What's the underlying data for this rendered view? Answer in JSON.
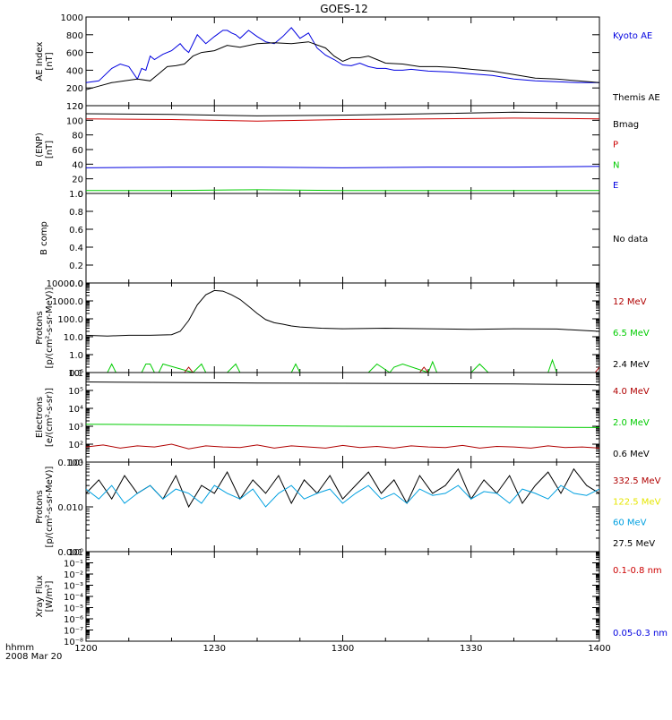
{
  "title": "GOES-12",
  "time_axis": {
    "ticks": [
      "1200",
      "1230",
      "1300",
      "1330",
      "1400"
    ],
    "label_line1": "hhmm",
    "label_line2": "2008 Mar 20",
    "range_minutes": [
      0,
      120
    ]
  },
  "colors": {
    "black": "#000000",
    "blue": "#0000e0",
    "red": "#cc0000",
    "green": "#00cc00",
    "cyan": "#00a0e0",
    "yellow": "#e6e600",
    "darkred": "#b00000"
  },
  "chart_data": [
    {
      "type": "line",
      "ylabel": [
        "AE Index",
        "[nT]"
      ],
      "ylim": [
        0,
        1000
      ],
      "yticks": [
        "0",
        "200",
        "400",
        "600",
        "800",
        "1000"
      ],
      "legend": [
        {
          "label": "Kyoto AE",
          "color": "#0000e0"
        },
        {
          "label": "Themis AE",
          "color": "#000000"
        }
      ],
      "series": [
        {
          "name": "Kyoto AE",
          "color": "#0000e0",
          "x": [
            0,
            3,
            6,
            8,
            10,
            12,
            13,
            14,
            15,
            16,
            18,
            20,
            22,
            23,
            24,
            26,
            28,
            30,
            32,
            33,
            34,
            35,
            36,
            38,
            40,
            42,
            44,
            46,
            48,
            50,
            52,
            54,
            56,
            58,
            60,
            62,
            64,
            66,
            68,
            70,
            72,
            74,
            76,
            78,
            80,
            85,
            90,
            95,
            100,
            105,
            110,
            115,
            120
          ],
          "y": [
            260,
            280,
            420,
            470,
            440,
            300,
            420,
            400,
            560,
            520,
            580,
            620,
            700,
            640,
            600,
            800,
            700,
            780,
            850,
            850,
            820,
            800,
            760,
            850,
            780,
            720,
            700,
            780,
            880,
            760,
            820,
            650,
            570,
            520,
            460,
            450,
            480,
            440,
            420,
            420,
            400,
            400,
            410,
            400,
            390,
            380,
            360,
            340,
            300,
            280,
            270,
            260,
            260
          ]
        },
        {
          "name": "Themis AE",
          "color": "#000000",
          "x": [
            0,
            3,
            6,
            9,
            12,
            15,
            17,
            19,
            21,
            23,
            25,
            27,
            30,
            33,
            36,
            40,
            44,
            48,
            52,
            56,
            58,
            60,
            62,
            64,
            66,
            68,
            70,
            74,
            78,
            82,
            86,
            90,
            95,
            100,
            105,
            110,
            115,
            120
          ],
          "y": [
            180,
            220,
            260,
            280,
            300,
            280,
            360,
            440,
            450,
            470,
            560,
            600,
            620,
            680,
            660,
            700,
            710,
            700,
            720,
            650,
            560,
            500,
            540,
            540,
            560,
            520,
            480,
            470,
            440,
            440,
            430,
            410,
            390,
            350,
            310,
            300,
            280,
            260
          ]
        }
      ]
    },
    {
      "type": "line",
      "ylabel": [
        "B (ENP)",
        "[nT]"
      ],
      "ylim": [
        0,
        120
      ],
      "yticks": [
        "0",
        "20",
        "40",
        "60",
        "80",
        "100",
        "120"
      ],
      "legend": [
        {
          "label": "Bmag",
          "color": "#000000"
        },
        {
          "label": "P",
          "color": "#cc0000"
        },
        {
          "label": "N",
          "color": "#00cc00"
        },
        {
          "label": "E",
          "color": "#0000e0"
        }
      ],
      "series": [
        {
          "name": "Bmag",
          "color": "#000000",
          "x": [
            0,
            20,
            40,
            60,
            80,
            100,
            120
          ],
          "y": [
            109,
            108,
            106,
            107,
            109,
            111,
            110
          ]
        },
        {
          "name": "P",
          "color": "#cc0000",
          "x": [
            0,
            20,
            40,
            60,
            80,
            100,
            120
          ],
          "y": [
            102,
            101,
            99,
            101,
            102,
            103,
            102
          ]
        },
        {
          "name": "N",
          "color": "#00cc00",
          "x": [
            0,
            20,
            40,
            60,
            80,
            100,
            120
          ],
          "y": [
            4,
            4,
            5,
            4,
            4,
            4,
            4
          ]
        },
        {
          "name": "E",
          "color": "#0000e0",
          "x": [
            0,
            20,
            40,
            60,
            80,
            100,
            120
          ],
          "y": [
            35,
            36,
            36,
            35,
            36,
            36,
            37
          ]
        }
      ]
    },
    {
      "type": "line",
      "ylabel": [
        "B comp"
      ],
      "ylim": [
        0,
        1
      ],
      "yticks": [
        "0.0",
        "0.2",
        "0.4",
        "0.6",
        "0.8",
        "1.0"
      ],
      "legend": [
        {
          "label": "No data",
          "color": "#000000"
        }
      ],
      "series": []
    },
    {
      "type": "line",
      "scale": "log",
      "ylabel": [
        "Protons",
        "[p/(cm²-s-sr-MeV)]"
      ],
      "ylim": [
        0.1,
        10000
      ],
      "yticks": [
        "0.1",
        "1.0",
        "10.0",
        "100.0",
        "1000.0",
        "10000.0"
      ],
      "legend": [
        {
          "label": "12 MeV",
          "color": "#b00000"
        },
        {
          "label": "6.5 MeV",
          "color": "#00cc00"
        },
        {
          "label": "2.4 MeV",
          "color": "#000000"
        }
      ],
      "series": [
        {
          "name": "2.4 MeV",
          "color": "#000000",
          "x": [
            0,
            5,
            10,
            15,
            20,
            22,
            24,
            26,
            28,
            30,
            32,
            34,
            36,
            38,
            40,
            42,
            44,
            46,
            48,
            50,
            55,
            60,
            70,
            80,
            90,
            100,
            110,
            120
          ],
          "y": [
            12,
            11,
            12,
            12,
            13,
            20,
            80,
            600,
            2200,
            3800,
            3500,
            2200,
            1200,
            500,
            200,
            90,
            60,
            50,
            40,
            35,
            30,
            28,
            30,
            28,
            26,
            28,
            27,
            20
          ]
        },
        {
          "name": "6.5 MeV",
          "color": "#00cc00",
          "x": [
            5,
            6,
            7,
            13,
            14,
            15,
            16,
            17,
            18,
            25,
            27,
            28,
            33,
            35,
            36,
            48,
            49,
            50,
            66,
            68,
            71,
            72,
            74,
            80,
            81,
            82,
            90,
            92,
            94,
            108,
            109,
            110
          ],
          "y": [
            0.1,
            0.3,
            0.1,
            0.1,
            0.3,
            0.3,
            0.1,
            0.1,
            0.3,
            0.1,
            0.3,
            0.1,
            0.1,
            0.3,
            0.1,
            0.1,
            0.3,
            0.1,
            0.1,
            0.3,
            0.1,
            0.2,
            0.3,
            0.1,
            0.4,
            0.1,
            0.1,
            0.3,
            0.1,
            0.1,
            0.5,
            0.1
          ]
        },
        {
          "name": "12 MeV",
          "color": "#b00000",
          "x": [
            23,
            24,
            25,
            78,
            79,
            80,
            119,
            120
          ],
          "y": [
            0.1,
            0.2,
            0.1,
            0.1,
            0.2,
            0.1,
            0.1,
            0.2
          ]
        }
      ]
    },
    {
      "type": "line",
      "scale": "log",
      "ylabel": [
        "Electrons",
        "[e/(cm²-s-sr)]"
      ],
      "ylim": [
        10,
        1000000
      ],
      "yticks": [
        "10¹",
        "10²",
        "10³",
        "10⁴",
        "10⁵",
        "10⁶"
      ],
      "legend": [
        {
          "label": "4.0 MeV",
          "color": "#b00000"
        },
        {
          "label": "2.0 MeV",
          "color": "#00cc00"
        },
        {
          "label": "0.6 MeV",
          "color": "#000000"
        }
      ],
      "series": [
        {
          "name": "0.6 MeV",
          "color": "#000000",
          "x": [
            0,
            20,
            40,
            60,
            80,
            100,
            120
          ],
          "y": [
            300000,
            280000,
            260000,
            250000,
            240000,
            230000,
            210000
          ]
        },
        {
          "name": "2.0 MeV",
          "color": "#00cc00",
          "x": [
            0,
            20,
            40,
            60,
            80,
            100,
            120
          ],
          "y": [
            1300,
            1200,
            1100,
            1000,
            950,
            900,
            850
          ]
        },
        {
          "name": "4.0 MeV",
          "color": "#b00000",
          "x": [
            0,
            4,
            8,
            12,
            16,
            20,
            24,
            28,
            32,
            36,
            40,
            44,
            48,
            52,
            56,
            60,
            64,
            68,
            72,
            76,
            80,
            84,
            88,
            92,
            96,
            100,
            104,
            108,
            112,
            116,
            120
          ],
          "y": [
            70,
            90,
            60,
            80,
            70,
            100,
            55,
            80,
            70,
            65,
            90,
            60,
            80,
            70,
            60,
            85,
            65,
            75,
            60,
            80,
            70,
            65,
            85,
            60,
            75,
            70,
            60,
            80,
            65,
            70,
            60
          ]
        }
      ]
    },
    {
      "type": "line",
      "scale": "log",
      "ylabel": [
        "Protons",
        "[p/(cm²-s-sr-MeV)]"
      ],
      "ylim": [
        0.001,
        0.1
      ],
      "yticks": [
        "0.001",
        "0.010",
        "0.100"
      ],
      "legend": [
        {
          "label": "332.5 MeV",
          "color": "#b00000"
        },
        {
          "label": "122.5 MeV",
          "color": "#e6e600"
        },
        {
          "label": "60 MeV",
          "color": "#00a0e0"
        },
        {
          "label": "27.5 MeV",
          "color": "#000000"
        }
      ],
      "series": [
        {
          "name": "27.5 MeV",
          "color": "#000000",
          "x": [
            0,
            3,
            6,
            9,
            12,
            15,
            18,
            21,
            24,
            27,
            30,
            33,
            36,
            39,
            42,
            45,
            48,
            51,
            54,
            57,
            60,
            63,
            66,
            69,
            72,
            75,
            78,
            81,
            84,
            87,
            90,
            93,
            96,
            99,
            102,
            105,
            108,
            111,
            114,
            117,
            120
          ],
          "y": [
            0.02,
            0.04,
            0.015,
            0.05,
            0.02,
            0.03,
            0.015,
            0.05,
            0.01,
            0.03,
            0.02,
            0.06,
            0.015,
            0.04,
            0.02,
            0.05,
            0.012,
            0.04,
            0.02,
            0.05,
            0.015,
            0.03,
            0.06,
            0.02,
            0.04,
            0.012,
            0.05,
            0.02,
            0.03,
            0.07,
            0.015,
            0.04,
            0.02,
            0.05,
            0.012,
            0.03,
            0.06,
            0.02,
            0.07,
            0.03,
            0.02
          ]
        },
        {
          "name": "60 MeV",
          "color": "#00a0e0",
          "x": [
            0,
            3,
            6,
            9,
            12,
            15,
            18,
            21,
            24,
            27,
            30,
            33,
            36,
            39,
            42,
            45,
            48,
            51,
            54,
            57,
            60,
            63,
            66,
            69,
            72,
            75,
            78,
            81,
            84,
            87,
            90,
            93,
            96,
            99,
            102,
            105,
            108,
            111,
            114,
            117,
            120
          ],
          "y": [
            0.025,
            0.015,
            0.03,
            0.012,
            0.02,
            0.03,
            0.015,
            0.025,
            0.02,
            0.012,
            0.03,
            0.02,
            0.015,
            0.025,
            0.01,
            0.02,
            0.03,
            0.015,
            0.02,
            0.025,
            0.012,
            0.02,
            0.03,
            0.015,
            0.02,
            0.012,
            0.025,
            0.018,
            0.02,
            0.03,
            0.015,
            0.022,
            0.02,
            0.012,
            0.025,
            0.02,
            0.015,
            0.03,
            0.02,
            0.018,
            0.025
          ]
        }
      ]
    },
    {
      "type": "line",
      "scale": "log",
      "ylabel": [
        "Xray Flux",
        "[W/m²]"
      ],
      "ylim": [
        1e-08,
        1
      ],
      "yticks": [
        "10⁻⁸",
        "10⁻⁷",
        "10⁻⁶",
        "10⁻⁵",
        "10⁻⁴",
        "10⁻³",
        "10⁻²",
        "10⁻¹",
        "10⁰"
      ],
      "legend": [
        {
          "label": "0.1-0.8 nm",
          "color": "#cc0000"
        },
        {
          "label": "0.05-0.3 nm",
          "color": "#0000e0"
        }
      ],
      "series": []
    }
  ]
}
